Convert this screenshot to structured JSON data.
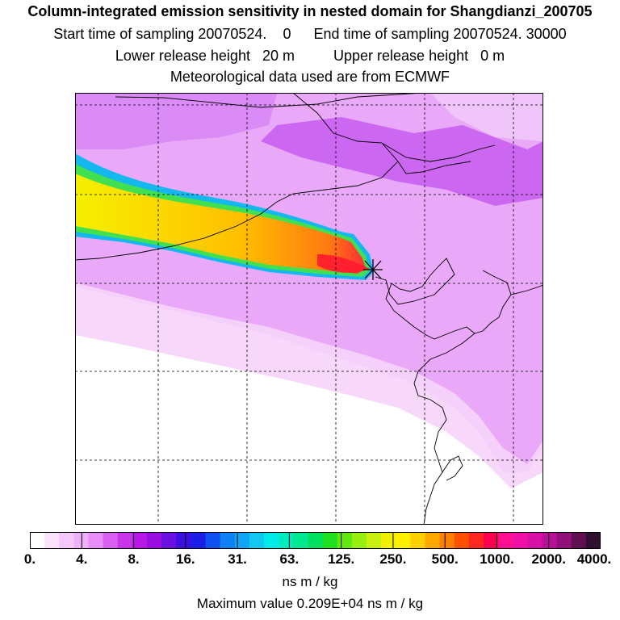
{
  "header": {
    "title": "Column-integrated emission sensitivity in nested domain for Shangdianzi_200705",
    "start_label": "Start time of sampling 20070524.",
    "start_value": "0",
    "end_label": "End time of sampling 20070524. 30000",
    "lower_label": "Lower release height",
    "lower_value": "20 m",
    "upper_label": "Upper release height",
    "upper_value": "0 m",
    "met_line": "Meteorological data used are from ECMWF"
  },
  "colorbar": {
    "ticks": [
      "0.",
      "4.",
      "8.",
      "16.",
      "31.",
      "63.",
      "125.",
      "250.",
      "500.",
      "1000.",
      "2000.",
      "4000."
    ],
    "colors": [
      "#ffffff",
      "#fbe3fb",
      "#f5c8fb",
      "#efb0fa",
      "#e88cf7",
      "#d960f2",
      "#c933ea",
      "#b718e6",
      "#9a0fe0",
      "#6a10e0",
      "#3c10e0",
      "#1a1ee6",
      "#1050f0",
      "#1080f5",
      "#10a6f5",
      "#10c8f0",
      "#00eaea",
      "#00ecc0",
      "#00e890",
      "#00e060",
      "#20e020",
      "#60e810",
      "#98ee10",
      "#c8f010",
      "#f0f000",
      "#fff000",
      "#ffd000",
      "#ffa800",
      "#ff8000",
      "#ff5000",
      "#ff2820",
      "#ff0050",
      "#ff1090",
      "#f010a8",
      "#d810a8",
      "#b81098",
      "#901078",
      "#601050",
      "#301030"
    ],
    "unit": "ns m / kg"
  },
  "footer": {
    "max_value": "Maximum value  0.209E+04 ns m / kg"
  },
  "map": {
    "marker": "receptor-star-icon"
  }
}
